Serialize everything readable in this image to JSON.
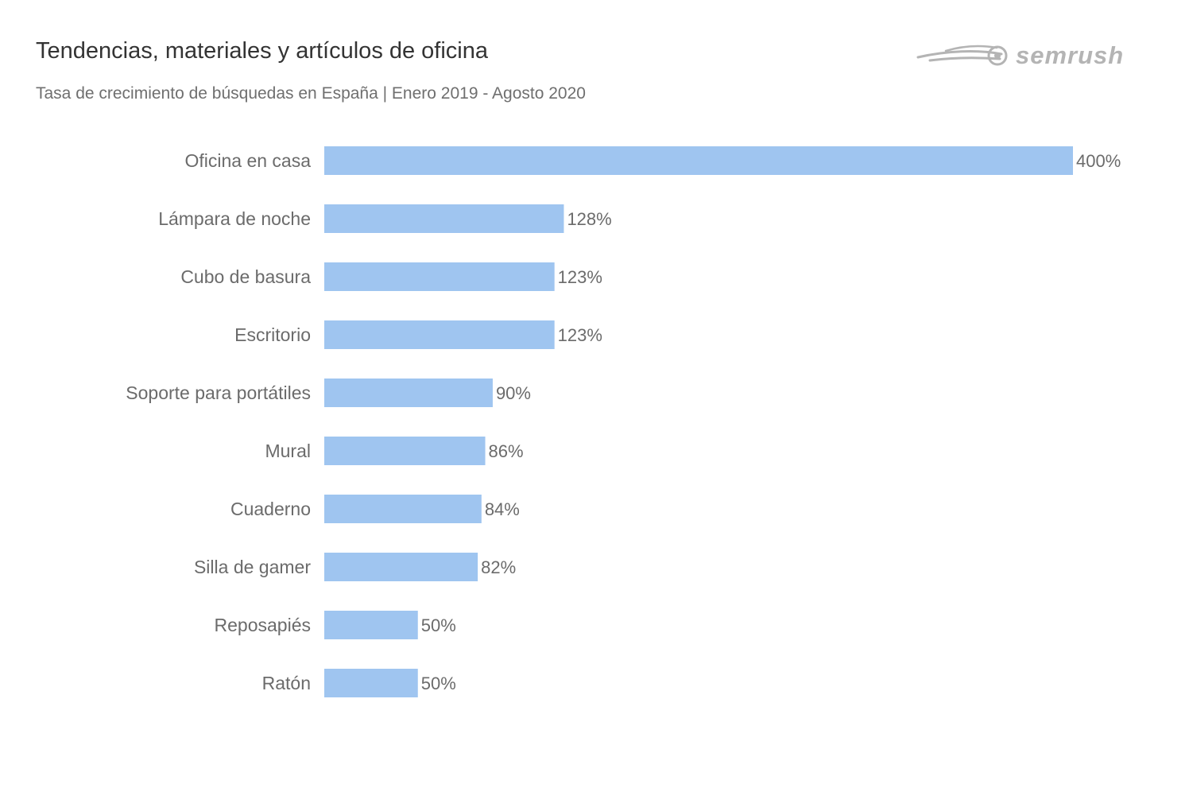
{
  "header": {
    "title": "Tendencias, materiales y artículos de oficina",
    "subtitle": "Tasa de crecimiento de búsquedas en España | Enero 2019 - Agosto 2020",
    "brand": "semrush"
  },
  "colors": {
    "bar": "#9fc5f0",
    "text": "#6b6b6b",
    "title": "#333333",
    "logo": "#b4b4b4"
  },
  "chart_data": {
    "type": "bar",
    "orientation": "horizontal",
    "title": "Tendencias, materiales y artículos de oficina",
    "subtitle": "Tasa de crecimiento de búsquedas en España | Enero 2019 - Agosto 2020",
    "xlabel": "",
    "ylabel": "",
    "grid": false,
    "legend": "none",
    "xlim": [
      0,
      400
    ],
    "unit": "%",
    "categories": [
      "Oficina en casa",
      "Lámpara de noche",
      "Cubo de basura",
      "Escritorio",
      "Soporte para portátiles",
      "Mural",
      "Cuaderno",
      "Silla de gamer",
      "Reposapiés",
      "Ratón"
    ],
    "values": [
      400,
      128,
      123,
      123,
      90,
      86,
      84,
      82,
      50,
      50
    ],
    "value_labels": [
      "400%",
      "128%",
      "123%",
      "123%",
      "90%",
      "86%",
      "84%",
      "82%",
      "50%",
      "50%"
    ]
  }
}
